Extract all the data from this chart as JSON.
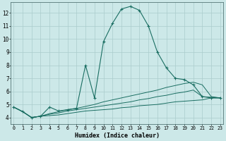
{
  "xlabel": "Humidex (Indice chaleur)",
  "background_color": "#cce8e8",
  "grid_color": "#aacccc",
  "line_color": "#1a6e62",
  "xlim": [
    -0.3,
    23.3
  ],
  "ylim": [
    3.5,
    12.8
  ],
  "xticks": [
    0,
    1,
    2,
    3,
    4,
    5,
    6,
    7,
    8,
    9,
    10,
    11,
    12,
    13,
    14,
    15,
    16,
    17,
    18,
    19,
    20,
    21,
    22,
    23
  ],
  "yticks": [
    4,
    5,
    6,
    7,
    8,
    9,
    10,
    11,
    12
  ],
  "x_vals": [
    0,
    1,
    2,
    3,
    4,
    5,
    6,
    7,
    8,
    9,
    10,
    11,
    12,
    13,
    14,
    15,
    16,
    17,
    18,
    19,
    20,
    21,
    22,
    23
  ],
  "series_main": [
    4.8,
    4.45,
    4.0,
    4.1,
    4.8,
    4.5,
    4.6,
    4.7,
    8.0,
    5.5,
    9.8,
    11.2,
    12.3,
    12.5,
    12.2,
    11.0,
    9.0,
    7.8,
    7.0,
    6.9,
    6.5,
    5.6,
    5.5,
    5.5
  ],
  "series2": [
    4.8,
    4.45,
    4.0,
    4.1,
    4.3,
    4.45,
    4.6,
    4.7,
    4.85,
    5.0,
    5.2,
    5.35,
    5.5,
    5.65,
    5.8,
    5.95,
    6.1,
    6.3,
    6.45,
    6.6,
    6.7,
    6.5,
    5.6,
    5.5
  ],
  "series3": [
    4.8,
    4.45,
    4.0,
    4.1,
    4.25,
    4.35,
    4.5,
    4.6,
    4.7,
    4.8,
    4.9,
    5.0,
    5.1,
    5.2,
    5.35,
    5.45,
    5.6,
    5.7,
    5.85,
    5.95,
    6.1,
    5.6,
    5.55,
    5.5
  ],
  "series4": [
    4.8,
    4.45,
    4.0,
    4.1,
    4.15,
    4.2,
    4.3,
    4.4,
    4.5,
    4.55,
    4.6,
    4.65,
    4.75,
    4.8,
    4.9,
    4.95,
    5.0,
    5.1,
    5.2,
    5.25,
    5.3,
    5.35,
    5.5,
    5.5
  ]
}
